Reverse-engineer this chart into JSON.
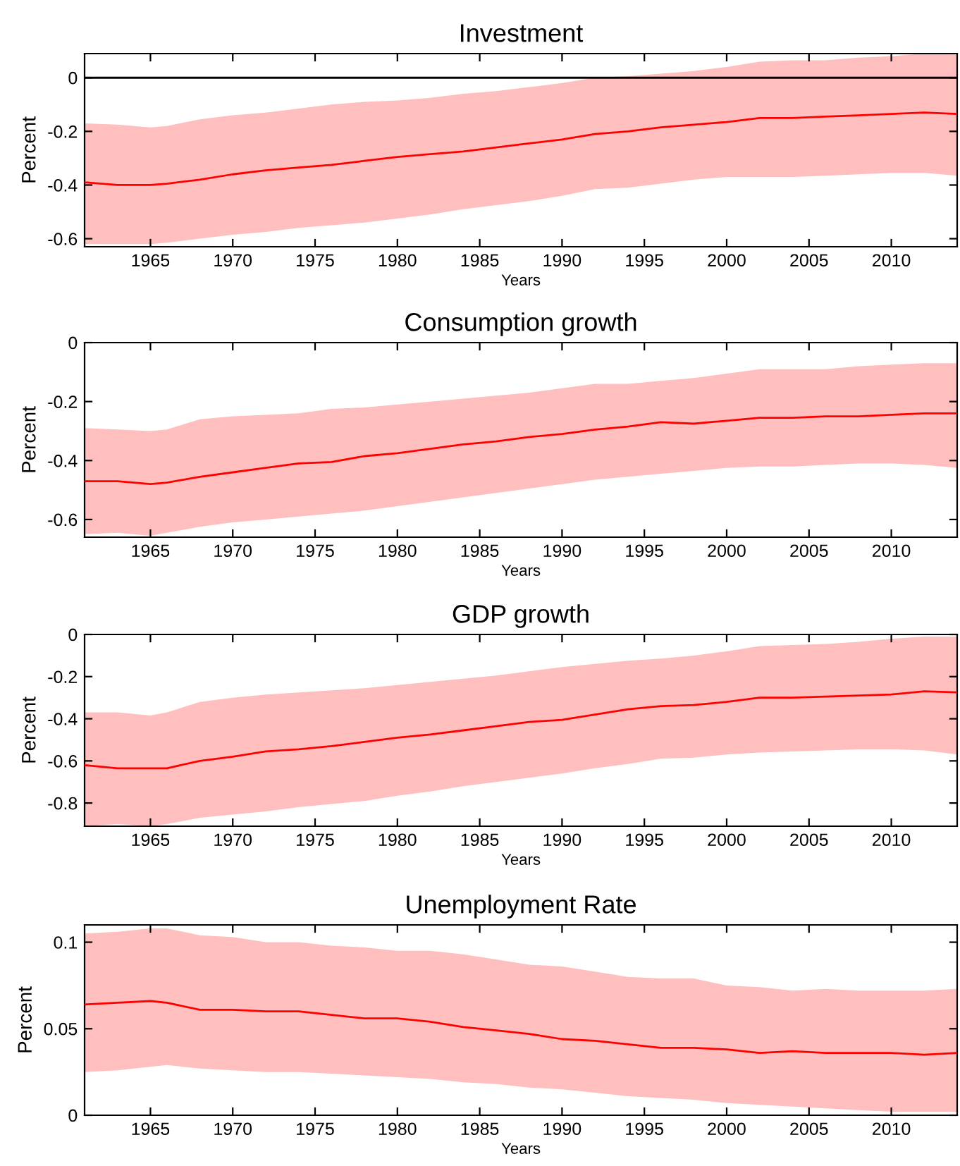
{
  "chart_data": [
    {
      "type": "line",
      "title": "Investment",
      "xlabel": "Years",
      "ylabel": "Percent",
      "x": [
        1961,
        1963,
        1965,
        1966,
        1968,
        1970,
        1972,
        1974,
        1976,
        1978,
        1980,
        1982,
        1984,
        1986,
        1988,
        1990,
        1992,
        1994,
        1996,
        1998,
        2000,
        2002,
        2004,
        2006,
        2008,
        2010,
        2012,
        2014
      ],
      "xlim": [
        1961,
        2014
      ],
      "xticks": [
        1965,
        1970,
        1975,
        1980,
        1985,
        1990,
        1995,
        2000,
        2005,
        2010
      ],
      "ylim": [
        -0.63,
        0.09
      ],
      "yticks": [
        -0.6,
        -0.4,
        -0.2,
        0
      ],
      "ref_lines": [
        {
          "axis": "y",
          "value": 0,
          "color": "#000000"
        }
      ],
      "series": [
        {
          "color": "#ff0000",
          "values": [
            -0.39,
            -0.4,
            -0.4,
            -0.395,
            -0.38,
            -0.36,
            -0.345,
            -0.335,
            -0.325,
            -0.31,
            -0.295,
            -0.285,
            -0.275,
            -0.26,
            -0.245,
            -0.23,
            -0.21,
            -0.2,
            -0.185,
            -0.175,
            -0.165,
            -0.15,
            -0.15,
            -0.145,
            -0.14,
            -0.135,
            -0.13,
            -0.135
          ],
          "upper": [
            -0.17,
            -0.175,
            -0.185,
            -0.18,
            -0.155,
            -0.14,
            -0.13,
            -0.115,
            -0.1,
            -0.09,
            -0.085,
            -0.075,
            -0.06,
            -0.05,
            -0.035,
            -0.02,
            0.0,
            0.005,
            0.015,
            0.025,
            0.04,
            0.06,
            0.065,
            0.065,
            0.075,
            0.08,
            0.09,
            0.09
          ],
          "lower": [
            -0.62,
            -0.62,
            -0.62,
            -0.615,
            -0.6,
            -0.585,
            -0.575,
            -0.56,
            -0.55,
            -0.54,
            -0.525,
            -0.51,
            -0.49,
            -0.475,
            -0.46,
            -0.44,
            -0.415,
            -0.41,
            -0.395,
            -0.38,
            -0.37,
            -0.37,
            -0.37,
            -0.365,
            -0.36,
            -0.355,
            -0.355,
            -0.365
          ]
        }
      ]
    },
    {
      "type": "line",
      "title": "Consumption growth",
      "xlabel": "Years",
      "ylabel": "Percent",
      "x": [
        1961,
        1963,
        1965,
        1966,
        1968,
        1970,
        1972,
        1974,
        1976,
        1978,
        1980,
        1982,
        1984,
        1986,
        1988,
        1990,
        1992,
        1994,
        1996,
        1998,
        2000,
        2002,
        2004,
        2006,
        2008,
        2010,
        2012,
        2014
      ],
      "xlim": [
        1961,
        2014
      ],
      "xticks": [
        1965,
        1970,
        1975,
        1980,
        1985,
        1990,
        1995,
        2000,
        2005,
        2010
      ],
      "ylim": [
        -0.66,
        0
      ],
      "yticks": [
        -0.6,
        -0.4,
        -0.2,
        0
      ],
      "series": [
        {
          "color": "#ff0000",
          "values": [
            -0.47,
            -0.47,
            -0.48,
            -0.475,
            -0.455,
            -0.44,
            -0.425,
            -0.41,
            -0.405,
            -0.385,
            -0.375,
            -0.36,
            -0.345,
            -0.335,
            -0.32,
            -0.31,
            -0.295,
            -0.285,
            -0.27,
            -0.275,
            -0.265,
            -0.255,
            -0.255,
            -0.25,
            -0.25,
            -0.245,
            -0.24,
            -0.24
          ],
          "upper": [
            -0.29,
            -0.295,
            -0.3,
            -0.295,
            -0.26,
            -0.25,
            -0.245,
            -0.24,
            -0.225,
            -0.22,
            -0.21,
            -0.2,
            -0.19,
            -0.18,
            -0.17,
            -0.155,
            -0.14,
            -0.14,
            -0.13,
            -0.12,
            -0.105,
            -0.09,
            -0.09,
            -0.09,
            -0.08,
            -0.075,
            -0.07,
            -0.07
          ],
          "lower": [
            -0.65,
            -0.645,
            -0.655,
            -0.645,
            -0.625,
            -0.61,
            -0.6,
            -0.59,
            -0.58,
            -0.57,
            -0.555,
            -0.54,
            -0.525,
            -0.51,
            -0.495,
            -0.48,
            -0.465,
            -0.455,
            -0.445,
            -0.435,
            -0.425,
            -0.42,
            -0.42,
            -0.415,
            -0.41,
            -0.41,
            -0.415,
            -0.425
          ]
        }
      ]
    },
    {
      "type": "line",
      "title": "GDP growth",
      "xlabel": "Years",
      "ylabel": "Percent",
      "x": [
        1961,
        1963,
        1965,
        1966,
        1968,
        1970,
        1972,
        1974,
        1976,
        1978,
        1980,
        1982,
        1984,
        1986,
        1988,
        1990,
        1992,
        1994,
        1996,
        1998,
        2000,
        2002,
        2004,
        2006,
        2008,
        2010,
        2012,
        2014
      ],
      "xlim": [
        1961,
        2014
      ],
      "xticks": [
        1965,
        1970,
        1975,
        1980,
        1985,
        1990,
        1995,
        2000,
        2005,
        2010
      ],
      "ylim": [
        -0.91,
        0
      ],
      "yticks": [
        -0.8,
        -0.6,
        -0.4,
        -0.2,
        0
      ],
      "series": [
        {
          "color": "#ff0000",
          "values": [
            -0.62,
            -0.635,
            -0.635,
            -0.635,
            -0.6,
            -0.58,
            -0.555,
            -0.545,
            -0.53,
            -0.51,
            -0.49,
            -0.475,
            -0.455,
            -0.435,
            -0.415,
            -0.405,
            -0.38,
            -0.355,
            -0.34,
            -0.335,
            -0.32,
            -0.3,
            -0.3,
            -0.295,
            -0.29,
            -0.285,
            -0.27,
            -0.275
          ],
          "upper": [
            -0.37,
            -0.37,
            -0.385,
            -0.37,
            -0.32,
            -0.3,
            -0.285,
            -0.275,
            -0.265,
            -0.255,
            -0.24,
            -0.225,
            -0.21,
            -0.195,
            -0.175,
            -0.155,
            -0.14,
            -0.125,
            -0.115,
            -0.1,
            -0.08,
            -0.055,
            -0.05,
            -0.045,
            -0.035,
            -0.02,
            -0.01,
            -0.01
          ],
          "lower": [
            -0.91,
            -0.9,
            -0.91,
            -0.9,
            -0.87,
            -0.855,
            -0.84,
            -0.82,
            -0.805,
            -0.79,
            -0.765,
            -0.745,
            -0.72,
            -0.7,
            -0.68,
            -0.66,
            -0.635,
            -0.615,
            -0.59,
            -0.585,
            -0.57,
            -0.56,
            -0.555,
            -0.55,
            -0.545,
            -0.545,
            -0.55,
            -0.57
          ]
        }
      ]
    },
    {
      "type": "line",
      "title": "Unemployment Rate",
      "xlabel": "Years",
      "ylabel": "Percent",
      "x": [
        1961,
        1963,
        1965,
        1966,
        1968,
        1970,
        1972,
        1974,
        1976,
        1978,
        1980,
        1982,
        1984,
        1986,
        1988,
        1990,
        1992,
        1994,
        1996,
        1998,
        2000,
        2002,
        2004,
        2006,
        2008,
        2010,
        2012,
        2014
      ],
      "xlim": [
        1961,
        2014
      ],
      "xticks": [
        1965,
        1970,
        1975,
        1980,
        1985,
        1990,
        1995,
        2000,
        2005,
        2010
      ],
      "ylim": [
        0,
        0.11
      ],
      "yticks": [
        0,
        0.05,
        0.1
      ],
      "series": [
        {
          "color": "#ff0000",
          "values": [
            0.064,
            0.065,
            0.066,
            0.065,
            0.061,
            0.061,
            0.06,
            0.06,
            0.058,
            0.056,
            0.056,
            0.054,
            0.051,
            0.049,
            0.047,
            0.044,
            0.043,
            0.041,
            0.039,
            0.039,
            0.038,
            0.036,
            0.037,
            0.036,
            0.036,
            0.036,
            0.035,
            0.036
          ],
          "upper": [
            0.105,
            0.106,
            0.108,
            0.108,
            0.104,
            0.103,
            0.1,
            0.1,
            0.098,
            0.097,
            0.095,
            0.095,
            0.093,
            0.09,
            0.087,
            0.086,
            0.083,
            0.08,
            0.079,
            0.079,
            0.075,
            0.074,
            0.072,
            0.073,
            0.072,
            0.072,
            0.072,
            0.073
          ],
          "lower": [
            0.025,
            0.026,
            0.028,
            0.029,
            0.027,
            0.026,
            0.025,
            0.025,
            0.024,
            0.023,
            0.022,
            0.021,
            0.019,
            0.018,
            0.016,
            0.015,
            0.013,
            0.011,
            0.01,
            0.009,
            0.007,
            0.006,
            0.005,
            0.004,
            0.003,
            0.002,
            0.002,
            0.002
          ]
        }
      ]
    }
  ]
}
